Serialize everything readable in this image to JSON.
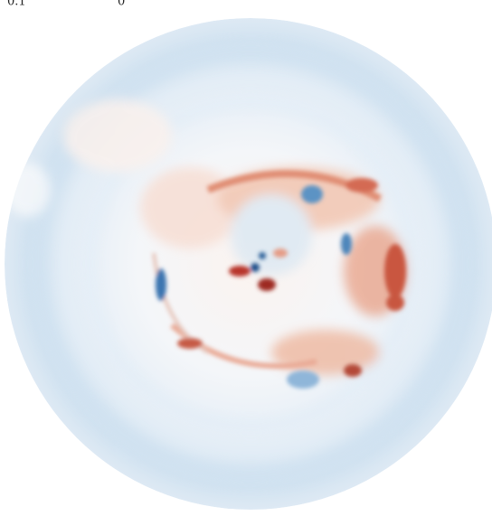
{
  "colorbar": {
    "tick_labels": [
      "0.1",
      "0"
    ]
  }
}
